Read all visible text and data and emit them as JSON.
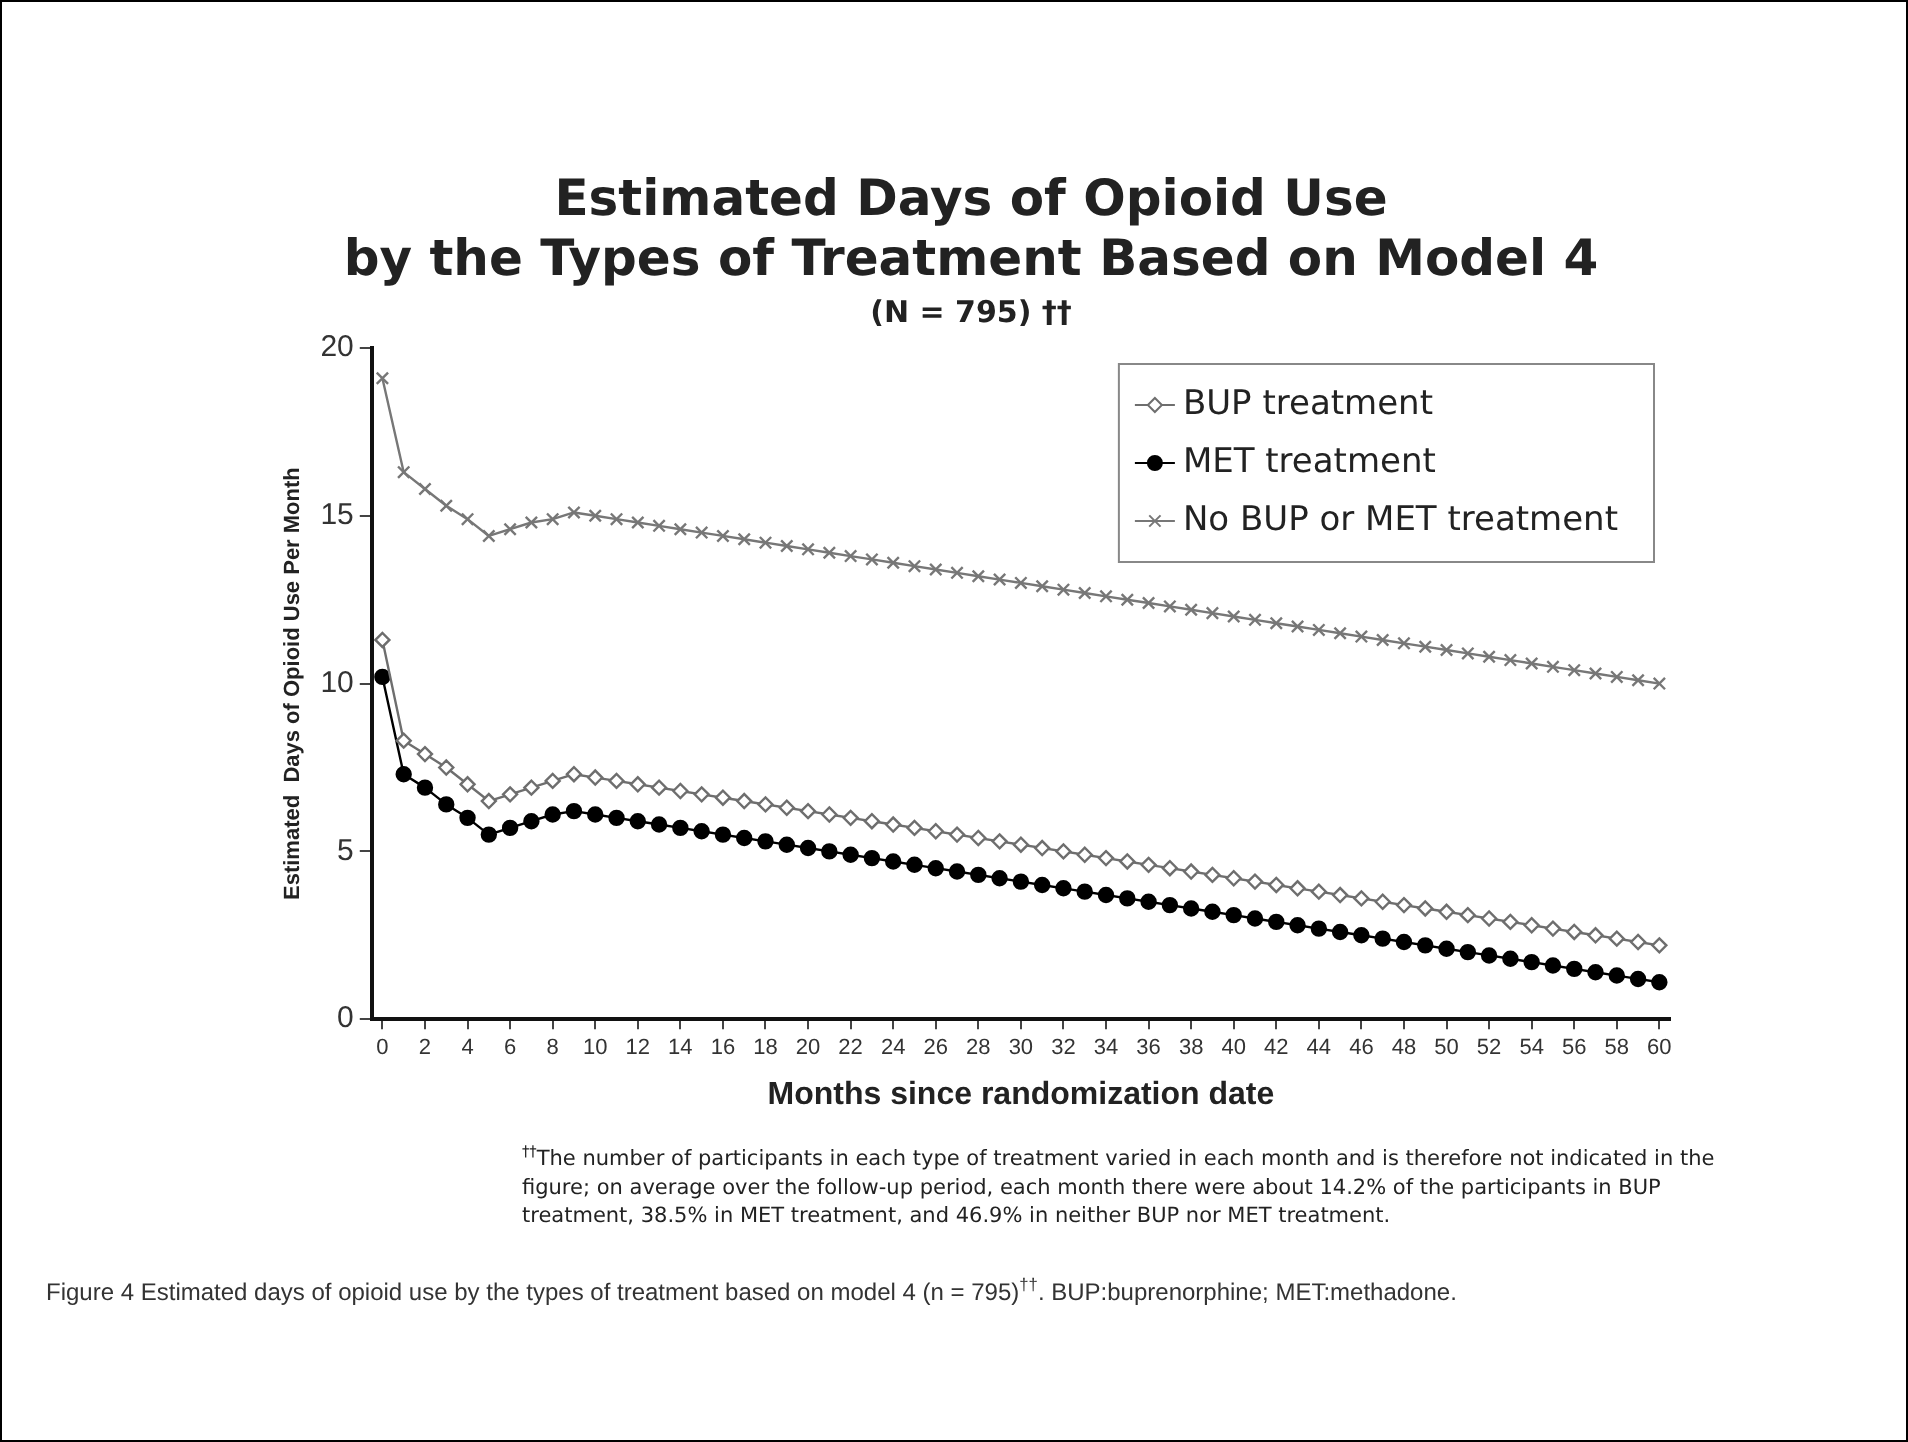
{
  "chart_data": {
    "type": "line",
    "title": [
      "Estimated Days of Opioid Use",
      "by the Types of Treatment Based on Model 4"
    ],
    "subtitle": "(N = 795) ††",
    "xlabel": "Months since randomization date",
    "ylabel": "Estimated  Days of Opioid Use Per Month",
    "x": [
      0,
      1,
      2,
      3,
      4,
      5,
      6,
      7,
      8,
      9,
      10,
      11,
      12,
      13,
      14,
      15,
      16,
      17,
      18,
      19,
      20,
      21,
      22,
      23,
      24,
      25,
      26,
      27,
      28,
      29,
      30,
      31,
      32,
      33,
      34,
      35,
      36,
      37,
      38,
      39,
      40,
      41,
      42,
      43,
      44,
      45,
      46,
      47,
      48,
      49,
      50,
      51,
      52,
      53,
      54,
      55,
      56,
      57,
      58,
      59,
      60
    ],
    "series": [
      {
        "name": "BUP treatment",
        "color": "#6e6e6e",
        "marker": "diamond",
        "values": [
          11.3,
          8.3,
          7.9,
          7.5,
          7.0,
          6.5,
          6.7,
          6.9,
          7.1,
          7.3,
          7.2,
          7.1,
          7.0,
          6.9,
          6.8,
          6.7,
          6.6,
          6.5,
          6.4,
          6.3,
          6.2,
          6.1,
          6.0,
          5.9,
          5.8,
          5.7,
          5.6,
          5.5,
          5.4,
          5.3,
          5.2,
          5.1,
          5.0,
          4.9,
          4.8,
          4.7,
          4.6,
          4.5,
          4.4,
          4.3,
          4.2,
          4.1,
          4.0,
          3.9,
          3.8,
          3.7,
          3.6,
          3.5,
          3.4,
          3.3,
          3.2,
          3.1,
          3.0,
          2.9,
          2.8,
          2.7,
          2.6,
          2.5,
          2.4,
          2.3,
          2.2
        ]
      },
      {
        "name": "MET treatment",
        "color": "#000000",
        "marker": "circle",
        "values": [
          10.2,
          7.3,
          6.9,
          6.4,
          6.0,
          5.5,
          5.7,
          5.9,
          6.1,
          6.2,
          6.1,
          6.0,
          5.9,
          5.8,
          5.7,
          5.6,
          5.5,
          5.4,
          5.3,
          5.2,
          5.1,
          5.0,
          4.9,
          4.8,
          4.7,
          4.6,
          4.5,
          4.4,
          4.3,
          4.2,
          4.1,
          4.0,
          3.9,
          3.8,
          3.7,
          3.6,
          3.5,
          3.4,
          3.3,
          3.2,
          3.1,
          3.0,
          2.9,
          2.8,
          2.7,
          2.6,
          2.5,
          2.4,
          2.3,
          2.2,
          2.1,
          2.0,
          1.9,
          1.8,
          1.7,
          1.6,
          1.5,
          1.4,
          1.3,
          1.2,
          1.1
        ]
      },
      {
        "name": "No BUP or MET treatment",
        "color": "#777777",
        "marker": "cross",
        "values": [
          19.1,
          16.3,
          15.8,
          15.3,
          14.9,
          14.4,
          14.6,
          14.8,
          14.9,
          15.1,
          15.0,
          14.9,
          14.8,
          14.7,
          14.6,
          14.5,
          14.4,
          14.3,
          14.2,
          14.1,
          14.0,
          13.9,
          13.8,
          13.7,
          13.6,
          13.5,
          13.4,
          13.3,
          13.2,
          13.1,
          13.0,
          12.9,
          12.8,
          12.7,
          12.6,
          12.5,
          12.4,
          12.3,
          12.2,
          12.1,
          12.0,
          11.9,
          11.8,
          11.7,
          11.6,
          11.5,
          11.4,
          11.3,
          11.2,
          11.1,
          11.0,
          10.9,
          10.8,
          10.7,
          10.6,
          10.5,
          10.4,
          10.3,
          10.2,
          10.1,
          10.0
        ]
      }
    ],
    "xlim": [
      -0.5,
      60.5
    ],
    "xticks": [
      0,
      2,
      4,
      6,
      8,
      10,
      12,
      14,
      16,
      18,
      20,
      22,
      24,
      26,
      28,
      30,
      32,
      34,
      36,
      38,
      40,
      42,
      44,
      46,
      48,
      50,
      52,
      54,
      56,
      58,
      60
    ],
    "ylim": [
      0,
      20
    ],
    "yticks": [
      0,
      5,
      10,
      15,
      20
    ],
    "grid": false,
    "legend": "top right",
    "line_style": "solid",
    "annotations": [
      "$^{††}$The number of participants in each type of treatment varied in each month and is therefore not indicated in the figure; on average over the follow-up period, each month there were about 14.2% of the participants in BUP treatment, 38.5% in MET treatment, and 46.9% in neither BUP nor MET treatment.",
      "Figure 4  Estimated days of opioid use by the types of treatment based on model 4 (n = 795)$^{††}$.  BUP:buprenorphine; MET:methadone."
    ]
  }
}
